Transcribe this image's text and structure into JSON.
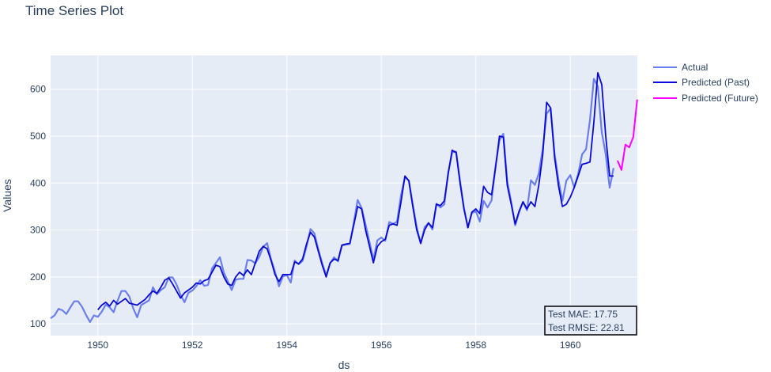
{
  "chart_data": {
    "type": "line",
    "title": "Time Series Plot",
    "xlabel": "ds",
    "ylabel": "Values",
    "xlim": [
      1949.0,
      1961.42
    ],
    "ylim": [
      75,
      672
    ],
    "x_ticks": [
      1950,
      1952,
      1954,
      1956,
      1958,
      1960
    ],
    "x_tick_labels": [
      "1950",
      "1952",
      "1954",
      "1956",
      "1958",
      "1960"
    ],
    "y_ticks": [
      100,
      200,
      300,
      400,
      500,
      600
    ],
    "y_tick_labels": [
      "100",
      "200",
      "300",
      "400",
      "500",
      "600"
    ],
    "grid": true,
    "legend": "right",
    "colors": {
      "actual": "#6b7ef0",
      "past": "#0a0ad8",
      "future": "#ff00ff",
      "plot_bg": "#e5ecf6"
    },
    "actual_start": "1949-01",
    "past_start": "1950-01",
    "future_start": "1961-01",
    "series": [
      {
        "name": "Actual",
        "values": [
          112,
          118,
          132,
          129,
          121,
          135,
          148,
          148,
          136,
          119,
          104,
          118,
          115,
          126,
          141,
          135,
          125,
          149,
          170,
          170,
          158,
          133,
          114,
          140,
          145,
          150,
          178,
          163,
          172,
          178,
          199,
          199,
          184,
          162,
          146,
          166,
          171,
          180,
          193,
          181,
          183,
          218,
          230,
          242,
          209,
          191,
          172,
          194,
          196,
          196,
          236,
          235,
          229,
          243,
          264,
          272,
          237,
          211,
          180,
          201,
          204,
          188,
          235,
          227,
          234,
          264,
          302,
          293,
          259,
          229,
          203,
          229,
          242,
          233,
          267,
          269,
          270,
          315,
          364,
          347,
          312,
          274,
          237,
          278,
          284,
          277,
          317,
          313,
          318,
          374,
          413,
          405,
          355,
          306,
          271,
          306,
          315,
          301,
          356,
          348,
          355,
          422,
          465,
          467,
          404,
          347,
          305,
          336,
          340,
          318,
          362,
          348,
          363,
          435,
          491,
          505,
          404,
          359,
          310,
          337,
          360,
          342,
          406,
          396,
          420,
          472,
          548,
          559,
          463,
          407,
          362,
          405,
          417,
          391,
          419,
          461,
          472,
          535,
          622,
          606,
          508,
          461,
          390,
          432
        ]
      },
      {
        "name": "Predicted (Past)",
        "values": [
          130,
          140,
          146,
          138,
          150,
          142,
          148,
          154,
          144,
          142,
          140,
          146,
          152,
          162,
          170,
          165,
          178,
          193,
          198,
          185,
          170,
          155,
          166,
          172,
          178,
          187,
          185,
          192,
          195,
          210,
          225,
          222,
          200,
          185,
          182,
          200,
          210,
          203,
          215,
          205,
          230,
          255,
          265,
          260,
          235,
          205,
          190,
          205,
          205,
          205,
          232,
          228,
          238,
          270,
          295,
          285,
          255,
          225,
          200,
          230,
          238,
          235,
          268,
          270,
          272,
          310,
          350,
          345,
          300,
          265,
          230,
          265,
          275,
          280,
          310,
          313,
          310,
          360,
          415,
          405,
          350,
          300,
          272,
          300,
          315,
          305,
          355,
          352,
          362,
          420,
          470,
          465,
          400,
          345,
          305,
          338,
          345,
          335,
          393,
          380,
          375,
          432,
          500,
          498,
          395,
          355,
          313,
          340,
          360,
          345,
          360,
          350,
          395,
          460,
          572,
          560,
          455,
          395,
          350,
          355,
          370,
          390,
          415,
          440,
          442,
          445,
          530,
          635,
          610,
          500,
          415,
          415
        ]
      },
      {
        "name": "Predicted (Future)",
        "values": [
          448,
          428,
          482,
          476,
          498,
          578
        ]
      }
    ],
    "annotation": {
      "mae": "Test MAE: 17.75",
      "rmse": "Test RMSE: 22.81"
    }
  }
}
